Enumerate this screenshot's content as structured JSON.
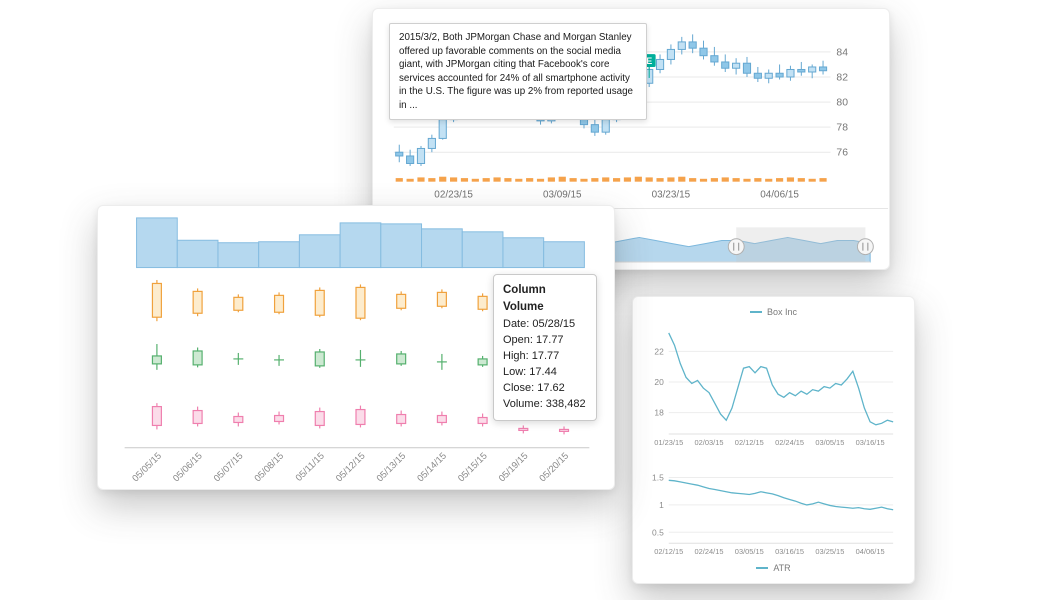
{
  "chart_data": [
    {
      "type": "candlestick",
      "title": "",
      "x_ticks": [
        "02/23/15",
        "03/09/15",
        "03/23/15",
        "04/06/15"
      ],
      "x_tick_indices": [
        5,
        15,
        25,
        35
      ],
      "y_ticks": [
        76,
        78,
        80,
        82,
        84
      ],
      "ylim": [
        74.6,
        86.0
      ],
      "ohlc": [
        [
          76.0,
          76.6,
          75.2,
          75.7
        ],
        [
          75.7,
          76.2,
          74.9,
          75.1
        ],
        [
          75.1,
          76.5,
          74.9,
          76.3
        ],
        [
          76.3,
          77.4,
          76.0,
          77.1
        ],
        [
          77.1,
          78.9,
          77.0,
          78.6
        ],
        [
          78.6,
          80.2,
          78.4,
          79.9
        ],
        [
          79.9,
          81.0,
          79.5,
          80.6
        ],
        [
          80.6,
          81.2,
          79.8,
          80.1
        ],
        [
          80.1,
          80.8,
          79.6,
          80.4
        ],
        [
          80.4,
          81.4,
          80.0,
          81.1
        ],
        [
          81.1,
          81.6,
          80.2,
          80.5
        ],
        [
          80.5,
          81.0,
          79.4,
          79.7
        ],
        [
          79.7,
          80.3,
          78.8,
          79.1
        ],
        [
          79.1,
          79.6,
          78.2,
          78.5
        ],
        [
          78.5,
          79.8,
          78.3,
          79.5
        ],
        [
          79.5,
          80.6,
          79.2,
          80.2
        ],
        [
          80.2,
          80.9,
          79.0,
          79.3
        ],
        [
          79.3,
          79.8,
          77.9,
          78.2
        ],
        [
          78.2,
          78.8,
          77.3,
          77.6
        ],
        [
          77.6,
          78.9,
          77.4,
          78.6
        ],
        [
          78.6,
          79.9,
          78.4,
          79.6
        ],
        [
          79.6,
          80.8,
          79.3,
          80.5
        ],
        [
          80.5,
          81.8,
          80.2,
          81.5
        ],
        [
          81.5,
          82.9,
          81.2,
          82.6
        ],
        [
          82.6,
          83.8,
          82.3,
          83.4
        ],
        [
          83.4,
          84.6,
          83.0,
          84.2
        ],
        [
          84.2,
          85.2,
          83.8,
          84.8
        ],
        [
          84.8,
          85.4,
          83.9,
          84.3
        ],
        [
          84.3,
          84.9,
          83.4,
          83.7
        ],
        [
          83.7,
          84.4,
          82.9,
          83.2
        ],
        [
          83.2,
          83.8,
          82.4,
          82.7
        ],
        [
          82.7,
          83.5,
          82.2,
          83.1
        ],
        [
          83.1,
          83.6,
          82.0,
          82.3
        ],
        [
          82.3,
          82.8,
          81.6,
          81.9
        ],
        [
          81.9,
          82.6,
          81.5,
          82.3
        ],
        [
          82.3,
          83.0,
          81.8,
          82.0
        ],
        [
          82.0,
          82.9,
          81.7,
          82.6
        ],
        [
          82.6,
          83.2,
          82.1,
          82.4
        ],
        [
          82.4,
          83.0,
          81.9,
          82.8
        ],
        [
          82.8,
          83.3,
          82.2,
          82.5
        ]
      ],
      "volume": [
        3,
        2,
        4,
        3,
        5,
        4,
        3,
        2,
        3,
        4,
        3,
        2,
        3,
        2,
        4,
        5,
        3,
        2,
        3,
        4,
        3,
        4,
        5,
        4,
        3,
        4,
        5,
        3,
        2,
        3,
        4,
        3,
        2,
        3,
        2,
        3,
        4,
        3,
        2,
        3
      ],
      "flag": {
        "index": 23,
        "value": 82.4,
        "label": "E"
      },
      "annotation": {
        "index": 12,
        "value": 80.3,
        "text": "2015/3/2, Both JPMorgan Chase and Morgan Stanley offered up favorable comments on the social media giant, with JPMorgan citing that Facebook's core services accounted for 24% of all smartphone activity in the U.S. The figure was up 2% from reported usage in ..."
      },
      "navigator": {
        "values": [
          5,
          6,
          5,
          6,
          7,
          6,
          5,
          6,
          7,
          6,
          7,
          8,
          7,
          6,
          7,
          8,
          7,
          6,
          5,
          6,
          7,
          7,
          6,
          7,
          8,
          7,
          6,
          7,
          7,
          6
        ],
        "handles": [
          0.72,
          0.99
        ]
      },
      "colors": {
        "candle_up": "#c2e1f4",
        "candle_down": "#8fc7e8",
        "candle_stroke": "#64a7d1",
        "volume": "#f5a24b",
        "flag": "#00af9b",
        "grid": "#e9e9e9",
        "label": "#777777",
        "nav_fill": "#a9d0ea",
        "nav_stroke": "#7db8dd"
      }
    },
    {
      "type": "candlestick-multi",
      "categories": [
        "05/05/15",
        "05/06/15",
        "05/07/15",
        "05/08/15",
        "05/11/15",
        "05/12/15",
        "05/13/15",
        "05/14/15",
        "05/15/15",
        "05/19/15",
        "05/20/15"
      ],
      "volume_overview": [
        100,
        55,
        50,
        52,
        66,
        90,
        88,
        78,
        72,
        60,
        52
      ],
      "series": [
        {
          "name": "orange",
          "stroke": "#f0a13c",
          "fill": "#fdeccd",
          "ohlc": [
            [
              20,
              95,
              12,
              88
            ],
            [
              28,
              78,
              22,
              72
            ],
            [
              34,
              66,
              30,
              60
            ],
            [
              30,
              70,
              26,
              64
            ],
            [
              24,
              80,
              20,
              74
            ],
            [
              18,
              86,
              14,
              80
            ],
            [
              38,
              72,
              34,
              66
            ],
            [
              42,
              76,
              38,
              70
            ],
            [
              36,
              68,
              32,
              62
            ],
            [
              44,
              58,
              40,
              52
            ],
            [
              46,
              60,
              42,
              54
            ]
          ]
        },
        {
          "name": "green",
          "stroke": "#55b06e",
          "fill": "#cde9d2",
          "ohlc": [
            [
              58,
              82,
              30,
              42
            ],
            [
              40,
              75,
              35,
              68
            ],
            [
              52,
              64,
              40,
              52
            ],
            [
              50,
              60,
              38,
              50
            ],
            [
              38,
              72,
              34,
              66
            ],
            [
              50,
              70,
              36,
              50
            ],
            [
              42,
              68,
              38,
              62
            ],
            [
              46,
              62,
              30,
              44
            ],
            [
              40,
              58,
              36,
              52
            ],
            [
              46,
              56,
              42,
              50
            ],
            [
              44,
              54,
              40,
              48
            ]
          ]
        },
        {
          "name": "pink",
          "stroke": "#ef7fae",
          "fill": "#fbdce9",
          "ohlc": [
            [
              30,
              75,
              22,
              68
            ],
            [
              34,
              68,
              28,
              60
            ],
            [
              36,
              56,
              28,
              48
            ],
            [
              38,
              58,
              32,
              50
            ],
            [
              30,
              66,
              24,
              58
            ],
            [
              32,
              70,
              26,
              62
            ],
            [
              34,
              60,
              28,
              52
            ],
            [
              36,
              58,
              30,
              50
            ],
            [
              34,
              54,
              28,
              46
            ],
            [
              20,
              30,
              14,
              24
            ],
            [
              18,
              28,
              12,
              22
            ]
          ]
        }
      ],
      "tooltip": {
        "title": "Column Volume",
        "lines": [
          "Date: 05/28/15",
          "Open: 17.77",
          "High: 17.77",
          "Low: 17.44",
          "Close: 17.62",
          "Volume: 338,482"
        ]
      },
      "colors": {
        "hist_fill": "#b5d8ef",
        "hist_stroke": "#85bce0",
        "axis": "#c9c9c9",
        "label": "#8a8a8a"
      }
    },
    {
      "type": "line",
      "legend": "Box Inc",
      "color": "#5fb4ca",
      "y_ticks": [
        18,
        20,
        22
      ],
      "ylim": [
        16.6,
        23.6
      ],
      "x_ticks": [
        "01/23/15",
        "02/03/15",
        "02/12/15",
        "02/24/15",
        "03/05/15",
        "03/16/15"
      ],
      "x_tick_indices": [
        0,
        7,
        14,
        21,
        28,
        35
      ],
      "values": [
        23.2,
        22.4,
        21.2,
        20.3,
        19.9,
        20.1,
        19.6,
        19.3,
        18.6,
        17.9,
        17.5,
        18.3,
        19.6,
        20.9,
        21.0,
        20.6,
        21.0,
        20.9,
        19.8,
        19.2,
        19.0,
        19.3,
        19.1,
        19.4,
        19.2,
        19.5,
        19.4,
        19.7,
        19.6,
        19.9,
        19.8,
        20.2,
        20.7,
        19.6,
        18.3,
        17.4,
        17.2,
        17.3,
        17.5,
        17.4
      ]
    },
    {
      "type": "line",
      "legend": "ATR",
      "color": "#5fb4ca",
      "y_ticks": [
        1.5,
        1,
        0.5
      ],
      "ylim": [
        0.3,
        1.75
      ],
      "x_ticks": [
        "02/12/15",
        "02/24/15",
        "03/05/15",
        "03/16/15",
        "03/25/15",
        "04/06/15"
      ],
      "x_tick_indices": [
        0,
        7,
        14,
        21,
        28,
        35
      ],
      "values": [
        1.45,
        1.44,
        1.42,
        1.4,
        1.38,
        1.36,
        1.33,
        1.3,
        1.28,
        1.26,
        1.24,
        1.22,
        1.21,
        1.2,
        1.19,
        1.21,
        1.24,
        1.22,
        1.2,
        1.17,
        1.13,
        1.1,
        1.07,
        1.03,
        1.0,
        1.02,
        1.05,
        1.02,
        0.99,
        0.97,
        0.96,
        0.95,
        0.94,
        0.95,
        0.93,
        0.92,
        0.94,
        0.96,
        0.93,
        0.91
      ]
    }
  ]
}
